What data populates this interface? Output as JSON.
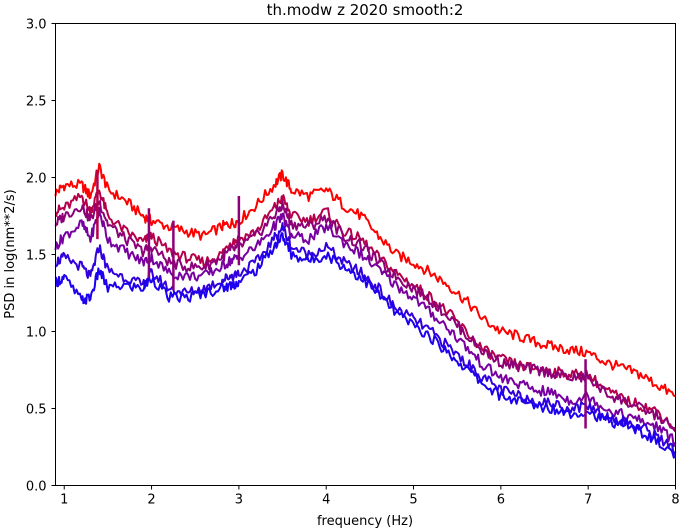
{
  "chart_data": {
    "type": "line",
    "title": "th.modw z 2020 smooth:2",
    "xlabel": "frequency (Hz)",
    "ylabel": "PSD in log(nm**2/s)",
    "xlim": [
      0.9,
      8.0
    ],
    "ylim": [
      0.0,
      3.0
    ],
    "xticks": [
      1,
      2,
      3,
      4,
      5,
      6,
      7,
      8
    ],
    "xtick_labels": [
      "1",
      "2",
      "3",
      "4",
      "5",
      "6",
      "7",
      "8"
    ],
    "yticks": [
      0.0,
      0.5,
      1.0,
      1.5,
      2.0,
      2.5,
      3.0
    ],
    "ytick_labels": [
      "0.0",
      "0.5",
      "1.0",
      "1.5",
      "2.0",
      "2.5",
      "3.0"
    ],
    "grid": false,
    "legend": "none",
    "series": [
      {
        "color": "#ff0000",
        "x": [
          0.9,
          1.0,
          1.2,
          1.3,
          1.4,
          1.5,
          1.7,
          1.9,
          2.0,
          2.2,
          2.4,
          2.6,
          2.8,
          2.9,
          3.0,
          3.2,
          3.4,
          3.5,
          3.6,
          3.8,
          4.0,
          4.2,
          4.4,
          4.6,
          4.8,
          5.0,
          5.2,
          5.4,
          5.6,
          5.8,
          6.0,
          6.2,
          6.4,
          6.6,
          6.8,
          7.0,
          7.2,
          7.4,
          7.6,
          7.8,
          8.0
        ],
        "y": [
          1.9,
          1.95,
          1.95,
          1.88,
          2.07,
          1.92,
          1.85,
          1.75,
          1.72,
          1.68,
          1.65,
          1.62,
          1.68,
          1.7,
          1.72,
          1.82,
          1.95,
          2.02,
          1.92,
          1.88,
          1.92,
          1.82,
          1.75,
          1.62,
          1.5,
          1.45,
          1.38,
          1.3,
          1.2,
          1.08,
          1.0,
          0.97,
          0.93,
          0.9,
          0.88,
          0.86,
          0.8,
          0.76,
          0.72,
          0.65,
          0.58
        ]
      },
      {
        "color": "#b4004b",
        "x": [
          0.9,
          1.0,
          1.2,
          1.3,
          1.4,
          1.5,
          1.7,
          1.9,
          2.0,
          2.2,
          2.4,
          2.6,
          2.8,
          2.9,
          3.0,
          3.2,
          3.4,
          3.5,
          3.6,
          3.8,
          4.0,
          4.2,
          4.4,
          4.6,
          4.8,
          5.0,
          5.2,
          5.4,
          5.6,
          5.8,
          6.0,
          6.2,
          6.4,
          6.6,
          6.8,
          7.0,
          7.2,
          7.4,
          7.6,
          7.8,
          8.0
        ],
        "y": [
          1.78,
          1.8,
          1.88,
          1.78,
          1.92,
          1.75,
          1.65,
          1.58,
          1.62,
          1.52,
          1.48,
          1.45,
          1.5,
          1.58,
          1.6,
          1.65,
          1.8,
          1.87,
          1.75,
          1.72,
          1.78,
          1.65,
          1.6,
          1.48,
          1.38,
          1.3,
          1.22,
          1.12,
          1.0,
          0.88,
          0.82,
          0.78,
          0.76,
          0.74,
          0.72,
          0.72,
          0.62,
          0.56,
          0.52,
          0.48,
          0.37
        ]
      },
      {
        "color": "#8c0078",
        "x": [
          0.9,
          1.0,
          1.2,
          1.3,
          1.4,
          1.5,
          1.7,
          1.9,
          2.0,
          2.2,
          2.4,
          2.6,
          2.8,
          2.9,
          3.0,
          3.2,
          3.4,
          3.5,
          3.6,
          3.8,
          4.0,
          4.2,
          4.4,
          4.6,
          4.8,
          5.0,
          5.2,
          5.4,
          5.6,
          5.8,
          6.0,
          6.2,
          6.4,
          6.6,
          6.8,
          7.0,
          7.2,
          7.4,
          7.6,
          7.8,
          8.0
        ],
        "y": [
          1.7,
          1.75,
          1.82,
          1.72,
          1.85,
          1.7,
          1.6,
          1.52,
          1.55,
          1.45,
          1.42,
          1.42,
          1.48,
          1.52,
          1.55,
          1.62,
          1.75,
          1.82,
          1.7,
          1.68,
          1.74,
          1.62,
          1.56,
          1.45,
          1.36,
          1.28,
          1.2,
          1.1,
          0.98,
          0.87,
          0.8,
          0.77,
          0.75,
          0.73,
          0.7,
          0.7,
          0.6,
          0.55,
          0.5,
          0.45,
          0.35
        ]
      },
      {
        "color": "#7800a0",
        "x": [
          0.9,
          1.0,
          1.2,
          1.3,
          1.4,
          1.5,
          1.7,
          1.9,
          2.0,
          2.2,
          2.4,
          2.6,
          2.8,
          2.9,
          3.0,
          3.2,
          3.4,
          3.5,
          3.6,
          3.8,
          4.0,
          4.2,
          4.4,
          4.6,
          4.8,
          5.0,
          5.2,
          5.4,
          5.6,
          5.8,
          6.0,
          6.2,
          6.4,
          6.6,
          6.8,
          7.0,
          7.2,
          7.4,
          7.6,
          7.8,
          8.0
        ],
        "y": [
          1.55,
          1.62,
          1.7,
          1.6,
          1.78,
          1.6,
          1.52,
          1.45,
          1.48,
          1.38,
          1.36,
          1.36,
          1.42,
          1.46,
          1.48,
          1.55,
          1.68,
          1.75,
          1.62,
          1.6,
          1.68,
          1.58,
          1.5,
          1.4,
          1.3,
          1.22,
          1.12,
          1.02,
          0.9,
          0.78,
          0.7,
          0.66,
          0.62,
          0.6,
          0.55,
          0.58,
          0.5,
          0.46,
          0.42,
          0.38,
          0.28
        ]
      },
      {
        "color": "#3200dc",
        "x": [
          0.9,
          1.0,
          1.2,
          1.3,
          1.4,
          1.5,
          1.7,
          1.9,
          2.0,
          2.2,
          2.4,
          2.6,
          2.8,
          2.9,
          3.0,
          3.2,
          3.4,
          3.5,
          3.6,
          3.8,
          4.0,
          4.2,
          4.4,
          4.6,
          4.8,
          5.0,
          5.2,
          5.4,
          5.6,
          5.8,
          6.0,
          6.2,
          6.4,
          6.6,
          6.8,
          7.0,
          7.2,
          7.4,
          7.6,
          7.8,
          8.0
        ],
        "y": [
          1.45,
          1.48,
          1.42,
          1.35,
          1.55,
          1.4,
          1.35,
          1.3,
          1.38,
          1.28,
          1.25,
          1.28,
          1.33,
          1.36,
          1.38,
          1.45,
          1.6,
          1.68,
          1.55,
          1.5,
          1.55,
          1.45,
          1.38,
          1.28,
          1.15,
          1.08,
          1.0,
          0.9,
          0.8,
          0.7,
          0.62,
          0.58,
          0.55,
          0.53,
          0.5,
          0.52,
          0.45,
          0.42,
          0.38,
          0.32,
          0.22
        ]
      },
      {
        "color": "#1e00f0",
        "x": [
          0.9,
          1.0,
          1.2,
          1.3,
          1.4,
          1.5,
          1.7,
          1.9,
          2.0,
          2.2,
          2.4,
          2.6,
          2.8,
          2.9,
          3.0,
          3.2,
          3.4,
          3.5,
          3.6,
          3.8,
          4.0,
          4.2,
          4.4,
          4.6,
          4.8,
          5.0,
          5.2,
          5.4,
          5.6,
          5.8,
          6.0,
          6.2,
          6.4,
          6.6,
          6.8,
          7.0,
          7.2,
          7.4,
          7.6,
          7.8,
          8.0
        ],
        "y": [
          1.32,
          1.35,
          1.2,
          1.22,
          1.4,
          1.28,
          1.3,
          1.28,
          1.35,
          1.22,
          1.22,
          1.25,
          1.28,
          1.3,
          1.32,
          1.4,
          1.55,
          1.62,
          1.5,
          1.46,
          1.5,
          1.42,
          1.35,
          1.24,
          1.12,
          1.04,
          0.96,
          0.86,
          0.76,
          0.66,
          0.58,
          0.55,
          0.52,
          0.5,
          0.47,
          0.48,
          0.42,
          0.4,
          0.35,
          0.28,
          0.19
        ]
      }
    ],
    "spikes": [
      {
        "x": 1.38,
        "y": 2.05,
        "color": "#b4004b"
      },
      {
        "x": 1.97,
        "y": 1.8,
        "color": "#8c0078"
      },
      {
        "x": 2.25,
        "y": 1.72,
        "color": "#8c0078"
      },
      {
        "x": 3.0,
        "y": 1.88,
        "color": "#8c0078"
      },
      {
        "x": 6.97,
        "y": 0.82,
        "color": "#8c0078"
      }
    ]
  }
}
